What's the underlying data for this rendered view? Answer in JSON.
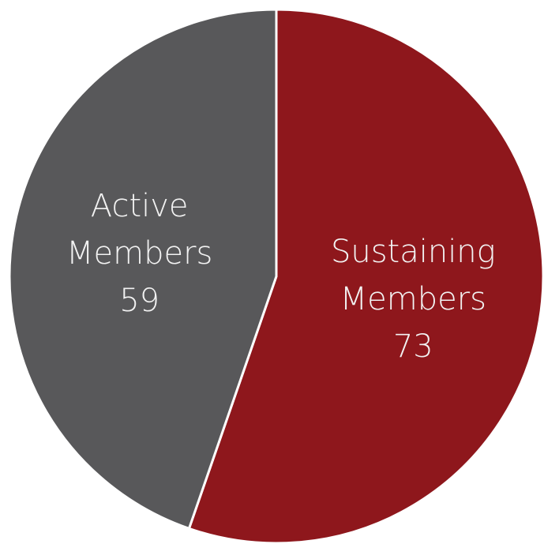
{
  "chart_data": {
    "type": "pie",
    "categories": [
      "Sustaining Members",
      "Active Members"
    ],
    "values": [
      73,
      59
    ],
    "colors": [
      "#8e171c",
      "#58585a"
    ],
    "start_angle": 0,
    "direction": "clockwise"
  }
}
